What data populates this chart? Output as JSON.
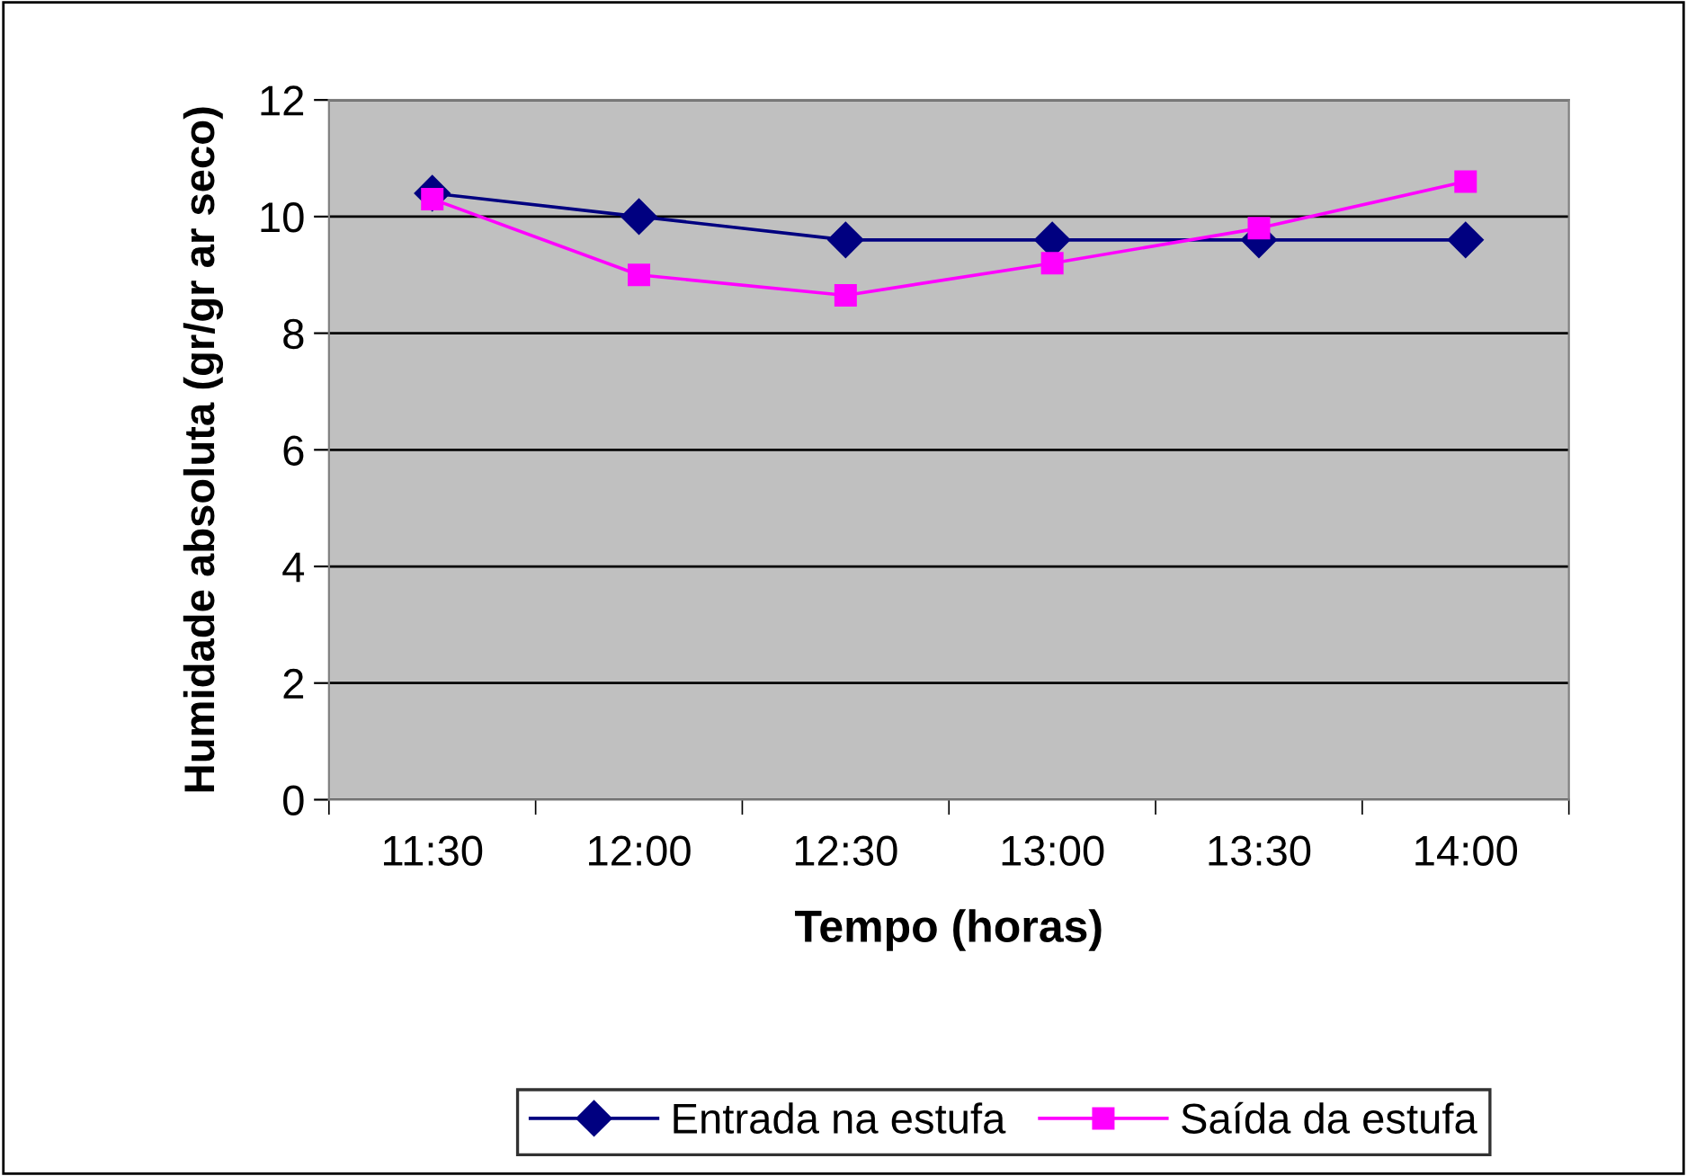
{
  "chart_data": {
    "type": "line",
    "xlabel": "Tempo (horas)",
    "ylabel": "Humidade absoluta (gr/gr ar seco)",
    "categories": [
      "11:30",
      "12:00",
      "12:30",
      "13:00",
      "13:30",
      "14:00"
    ],
    "series": [
      {
        "name": "Entrada na estufa",
        "color": "#000080",
        "marker": "diamond",
        "values": [
          10.4,
          10.0,
          9.6,
          9.6,
          9.6,
          9.6
        ]
      },
      {
        "name": "Saída da estufa",
        "color": "#ff00ff",
        "marker": "square",
        "values": [
          10.3,
          9.0,
          8.65,
          9.2,
          9.8,
          10.6
        ]
      }
    ],
    "ylim": [
      0,
      12
    ],
    "yticks": [
      0,
      2,
      4,
      6,
      8,
      10,
      12
    ],
    "grid": "y",
    "legend": "bottom",
    "line_style": "solid"
  }
}
